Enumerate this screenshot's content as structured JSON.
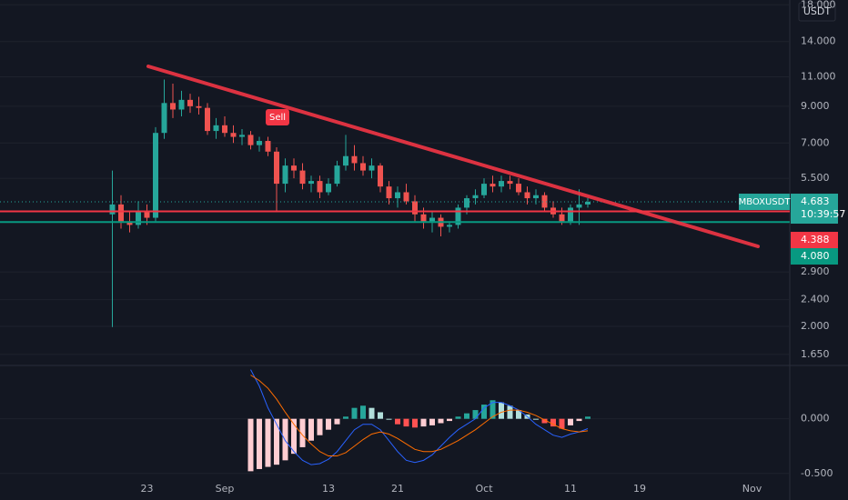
{
  "chart_data": [
    {
      "type": "candlestick",
      "currency_label": "USDT",
      "log_scale": true,
      "grid": true,
      "up_color": "#26a69a",
      "down_color": "#ef5350",
      "ylim": [
        1.55,
        18.6
      ],
      "yticks": [
        {
          "value": 18,
          "label": "18.000"
        },
        {
          "value": 14,
          "label": "14.000"
        },
        {
          "value": 11,
          "label": "11.000"
        },
        {
          "value": 9,
          "label": "9.000"
        },
        {
          "value": 7,
          "label": "7.000"
        },
        {
          "value": 5.5,
          "label": "5.500"
        },
        {
          "value": 2.9,
          "label": "2.900"
        },
        {
          "value": 2.4,
          "label": "2.400"
        },
        {
          "value": 2,
          "label": "2.000"
        },
        {
          "value": 1.65,
          "label": "1.650"
        }
      ],
      "categories": [
        null,
        null,
        null,
        null,
        null,
        null,
        null,
        null,
        null,
        "23",
        null,
        null,
        null,
        null,
        null,
        null,
        null,
        null,
        "Sep",
        null,
        null,
        null,
        null,
        null,
        null,
        null,
        null,
        null,
        null,
        null,
        "13",
        null,
        null,
        null,
        null,
        null,
        null,
        null,
        "21",
        null,
        null,
        null,
        null,
        null,
        null,
        null,
        null,
        null,
        "Oct",
        null,
        null,
        null,
        null,
        null,
        null,
        null,
        null,
        null,
        "11",
        null,
        null,
        null,
        null,
        null,
        null,
        null,
        "19",
        null,
        null,
        null,
        null,
        null,
        null,
        null,
        null,
        null,
        null,
        null,
        null,
        "Nov",
        null,
        null,
        null,
        null
      ],
      "open": [
        null,
        null,
        null,
        null,
        null,
        4.3,
        4.6,
        4.1,
        4.0,
        4.4,
        4.2,
        7.5,
        9.2,
        8.8,
        9.4,
        9.0,
        8.9,
        7.6,
        7.9,
        7.5,
        7.3,
        7.4,
        6.9,
        7.1,
        6.6,
        5.3,
        6.0,
        5.8,
        5.3,
        5.4,
        5.0,
        5.3,
        6.0,
        6.4,
        6.1,
        5.8,
        6.0,
        5.2,
        4.8,
        5.0,
        4.7,
        4.3,
        4.1,
        4.2,
        3.95,
        4.0,
        4.5,
        4.8,
        4.9,
        5.3,
        5.2,
        5.4,
        5.3,
        5.0,
        4.8,
        4.9,
        4.5,
        4.3,
        4.1,
        4.5,
        4.6,
        null,
        null,
        null,
        null,
        null,
        null,
        null,
        null,
        null,
        null,
        null,
        null,
        null,
        null,
        null,
        null,
        null,
        null,
        null,
        null,
        null,
        null,
        null
      ],
      "high": [
        null,
        null,
        null,
        null,
        null,
        5.8,
        4.9,
        4.4,
        4.7,
        4.6,
        7.8,
        10.8,
        10.5,
        10.0,
        9.8,
        9.6,
        9.2,
        8.3,
        8.4,
        7.9,
        7.7,
        7.6,
        7.3,
        7.3,
        6.8,
        6.3,
        6.3,
        6.1,
        5.6,
        5.6,
        5.5,
        6.2,
        7.4,
        6.9,
        6.4,
        6.3,
        6.1,
        5.4,
        5.2,
        5.3,
        4.9,
        4.5,
        4.4,
        4.3,
        4.1,
        4.6,
        4.9,
        5.1,
        5.5,
        5.6,
        5.6,
        5.6,
        5.5,
        5.2,
        5.1,
        5.0,
        4.7,
        4.5,
        4.6,
        5.1,
        4.8,
        null,
        null,
        null,
        null,
        null,
        null,
        null,
        null,
        null,
        null,
        null,
        null,
        null,
        null,
        null,
        null,
        null,
        null,
        null,
        null,
        null,
        null,
        null
      ],
      "low": [
        null,
        null,
        null,
        null,
        null,
        1.99,
        3.9,
        3.8,
        3.9,
        4.0,
        4.1,
        7.2,
        8.3,
        8.4,
        8.6,
        8.5,
        7.4,
        7.2,
        7.3,
        7.0,
        6.9,
        6.7,
        6.6,
        6.4,
        4.4,
        5.0,
        5.5,
        5.1,
        5.0,
        4.8,
        4.9,
        5.2,
        5.8,
        5.8,
        5.6,
        5.5,
        5.0,
        4.6,
        4.5,
        4.6,
        4.1,
        3.9,
        3.8,
        3.7,
        3.8,
        3.9,
        4.3,
        4.6,
        4.8,
        5.0,
        5.0,
        5.1,
        4.9,
        4.6,
        4.6,
        4.4,
        4.2,
        4.0,
        4.0,
        4.0,
        4.5,
        null,
        null,
        null,
        null,
        null,
        null,
        null,
        null,
        null,
        null,
        null,
        null,
        null,
        null,
        null,
        null,
        null,
        null,
        null,
        null,
        null,
        null,
        null
      ],
      "close": [
        null,
        null,
        null,
        null,
        null,
        4.6,
        4.1,
        4.0,
        4.4,
        4.2,
        7.5,
        9.2,
        8.8,
        9.4,
        9.0,
        8.9,
        7.6,
        7.9,
        7.5,
        7.3,
        7.4,
        6.9,
        7.1,
        6.6,
        5.3,
        6.0,
        5.8,
        5.3,
        5.4,
        5.0,
        5.3,
        6.0,
        6.4,
        6.1,
        5.8,
        6.0,
        5.2,
        4.8,
        5.0,
        4.7,
        4.3,
        4.1,
        4.2,
        3.95,
        4.0,
        4.5,
        4.8,
        4.9,
        5.3,
        5.2,
        5.4,
        5.3,
        5.0,
        4.8,
        4.9,
        4.5,
        4.3,
        4.1,
        4.5,
        4.6,
        4.683,
        null,
        null,
        null,
        null,
        null,
        null,
        null,
        null,
        null,
        null,
        null,
        null,
        null,
        null,
        null,
        null,
        null,
        null,
        null,
        null,
        null,
        null,
        null
      ],
      "annotation": "Sell",
      "last_price": {
        "symbol": "MBOXUSDT",
        "price": 4.683,
        "countdown": "10:39:57",
        "color": "#26a69a"
      },
      "price_lines": [
        {
          "price": 4.388,
          "color": "#f23645"
        },
        {
          "price": {
            "value": 4.08,
            "label": "4.080"
          },
          "color": "#089981"
        }
      ]
    },
    {
      "type": "macd",
      "grid": true,
      "ylim": [
        -0.66,
        0.48
      ],
      "yticks": [
        {
          "value": 0,
          "label": "0.000"
        },
        {
          "value": -0.5,
          "label": "-0.500"
        }
      ],
      "histogram": [
        null,
        null,
        null,
        null,
        null,
        null,
        null,
        null,
        null,
        null,
        null,
        null,
        null,
        null,
        null,
        null,
        null,
        null,
        null,
        null,
        null,
        -0.48,
        -0.46,
        -0.44,
        -0.42,
        -0.38,
        -0.32,
        -0.26,
        -0.2,
        -0.15,
        -0.1,
        -0.05,
        0.02,
        0.1,
        0.12,
        0.1,
        0.06,
        0.0,
        -0.05,
        -0.07,
        -0.08,
        -0.07,
        -0.06,
        -0.04,
        -0.02,
        0.02,
        0.05,
        0.08,
        0.13,
        0.17,
        0.15,
        0.12,
        0.08,
        0.04,
        0.0,
        -0.04,
        -0.07,
        -0.09,
        -0.06,
        -0.02,
        0.02,
        null,
        null,
        null,
        null,
        null,
        null,
        null,
        null,
        null,
        null,
        null,
        null,
        null,
        null,
        null,
        null,
        null,
        null,
        null,
        null,
        null,
        null,
        null
      ],
      "lines": [
        {
          "color": "#2962ff",
          "values": [
            null,
            null,
            null,
            null,
            null,
            null,
            null,
            null,
            null,
            null,
            null,
            null,
            null,
            null,
            null,
            null,
            null,
            null,
            null,
            null,
            null,
            0.45,
            0.3,
            0.1,
            -0.05,
            -0.2,
            -0.3,
            -0.38,
            -0.42,
            -0.41,
            -0.37,
            -0.3,
            -0.2,
            -0.1,
            -0.05,
            -0.05,
            -0.1,
            -0.2,
            -0.3,
            -0.38,
            -0.4,
            -0.38,
            -0.33,
            -0.25,
            -0.17,
            -0.1,
            -0.05,
            0.0,
            0.1,
            0.15,
            0.15,
            0.12,
            0.08,
            0.02,
            -0.05,
            -0.1,
            -0.15,
            -0.17,
            -0.14,
            -0.12,
            -0.09,
            null,
            null,
            null,
            null,
            null,
            null,
            null,
            null,
            null,
            null,
            null,
            null,
            null,
            null,
            null,
            null,
            null,
            null,
            null,
            null,
            null,
            null,
            null
          ]
        },
        {
          "color": "#ff6d00",
          "values": [
            null,
            null,
            null,
            null,
            null,
            null,
            null,
            null,
            null,
            null,
            null,
            null,
            null,
            null,
            null,
            null,
            null,
            null,
            null,
            null,
            null,
            0.4,
            0.35,
            0.28,
            0.18,
            0.06,
            -0.05,
            -0.15,
            -0.23,
            -0.3,
            -0.34,
            -0.34,
            -0.31,
            -0.25,
            -0.19,
            -0.14,
            -0.12,
            -0.14,
            -0.18,
            -0.23,
            -0.28,
            -0.3,
            -0.3,
            -0.28,
            -0.24,
            -0.2,
            -0.15,
            -0.1,
            -0.04,
            0.02,
            0.06,
            0.08,
            0.08,
            0.06,
            0.03,
            -0.01,
            -0.05,
            -0.09,
            -0.11,
            -0.12,
            -0.11,
            null,
            null,
            null,
            null,
            null,
            null,
            null,
            null,
            null,
            null,
            null,
            null,
            null,
            null,
            null,
            null,
            null,
            null,
            null,
            null,
            null,
            null,
            null
          ]
        }
      ]
    }
  ]
}
